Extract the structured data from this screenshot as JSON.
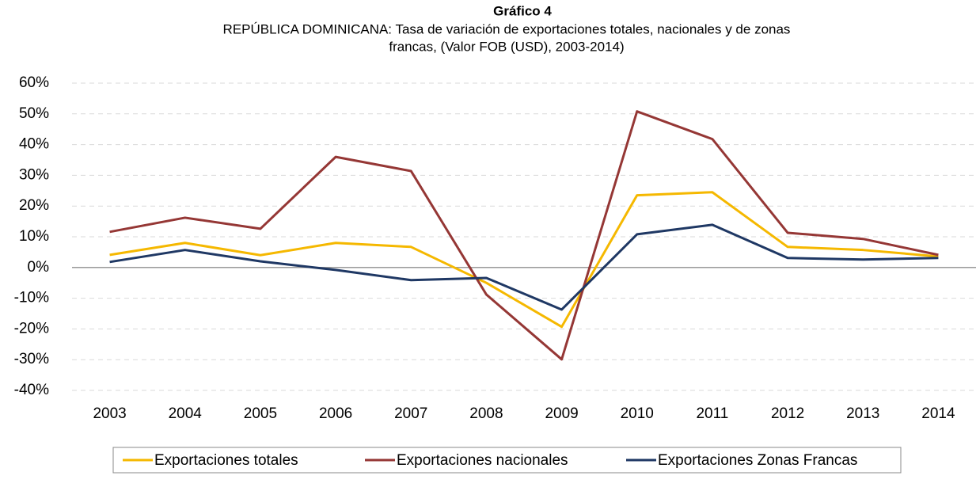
{
  "chart_data": {
    "type": "line",
    "title": "Gráfico 4",
    "subtitle": [
      "REPÚBLICA DOMINICANA: Tasa de variación de exportaciones totales, nacionales y de zonas",
      "francas, (Valor FOB (USD), 2003-2014)"
    ],
    "categories": [
      "2003",
      "2004",
      "2005",
      "2006",
      "2007",
      "2008",
      "2009",
      "2010",
      "2011",
      "2012",
      "2013",
      "2014"
    ],
    "series": [
      {
        "name": "Exportaciones totales",
        "color": "#f5b800",
        "values": [
          4.1,
          8,
          4,
          8,
          6.7,
          -5,
          -19.3,
          23.5,
          24.5,
          6.7,
          5.7,
          3.6
        ]
      },
      {
        "name": "Exportaciones nacionales",
        "color": "#953735",
        "values": [
          11.6,
          16.2,
          12.6,
          36,
          31.4,
          -8.8,
          -29.9,
          50.8,
          41.8,
          11.3,
          9.3,
          4.1
        ]
      },
      {
        "name": "Exportaciones Zonas Francas",
        "color": "#1f3864",
        "values": [
          1.8,
          5.7,
          2,
          -0.8,
          -4.1,
          -3.4,
          -13.7,
          10.8,
          13.9,
          3.1,
          2.6,
          3.1
        ]
      }
    ],
    "ylim": [
      -40,
      60
    ],
    "yticks": [
      {
        "value": -40,
        "label": "-40%"
      },
      {
        "value": -30,
        "label": "-30%"
      },
      {
        "value": -20,
        "label": "-20%"
      },
      {
        "value": -10,
        "label": "-10%"
      },
      {
        "value": 0,
        "label": "0%"
      },
      {
        "value": 10,
        "label": "10%"
      },
      {
        "value": 20,
        "label": "20%"
      },
      {
        "value": 30,
        "label": "30%"
      },
      {
        "value": 40,
        "label": "40%"
      },
      {
        "value": 50,
        "label": "50%"
      },
      {
        "value": 60,
        "label": "60%"
      }
    ],
    "grid": true,
    "legend": "bottom"
  }
}
